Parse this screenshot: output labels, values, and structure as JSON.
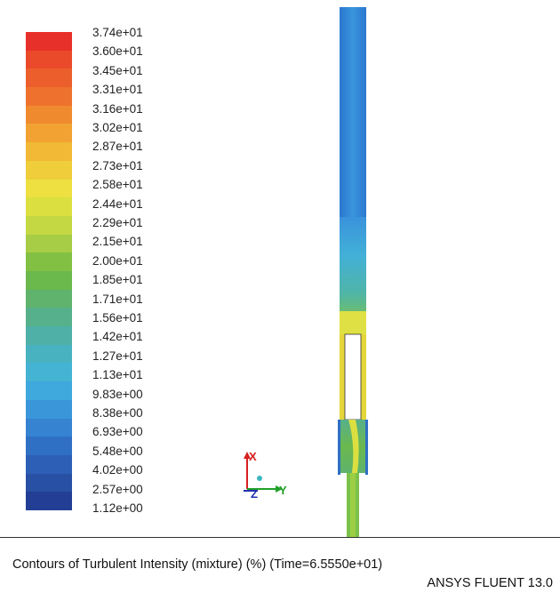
{
  "legend": {
    "labels": [
      "3.74e+01",
      "3.60e+01",
      "3.45e+01",
      "3.31e+01",
      "3.16e+01",
      "3.02e+01",
      "2.87e+01",
      "2.73e+01",
      "2.58e+01",
      "2.44e+01",
      "2.29e+01",
      "2.15e+01",
      "2.00e+01",
      "1.85e+01",
      "1.71e+01",
      "1.56e+01",
      "1.42e+01",
      "1.27e+01",
      "1.13e+01",
      "9.83e+00",
      "8.38e+00",
      "6.93e+00",
      "5.48e+00",
      "4.02e+00",
      "2.57e+00",
      "1.12e+00"
    ],
    "colors": [
      "#e8302a",
      "#ea4a2a",
      "#ec5f2c",
      "#ee722e",
      "#f08a2f",
      "#f1a232",
      "#f1b935",
      "#efcd3b",
      "#ede040",
      "#dbe040",
      "#c3d843",
      "#a6cd45",
      "#82c044",
      "#6bb84d",
      "#5fb36d",
      "#56b08c",
      "#4eb0a6",
      "#49b2c0",
      "#44b3d4",
      "#3fa8dd",
      "#3a96d9",
      "#3583d1",
      "#2f6fc4",
      "#2c5fb5",
      "#2850a4",
      "#223f95"
    ]
  },
  "axes": {
    "x_label": "X",
    "y_label": "Y",
    "z_label": "Z"
  },
  "footer": {
    "title": "Contours of Turbulent Intensity (mixture)  (%)  (Time=6.5550e+01)",
    "brand": "ANSYS FLUENT 13.0"
  }
}
